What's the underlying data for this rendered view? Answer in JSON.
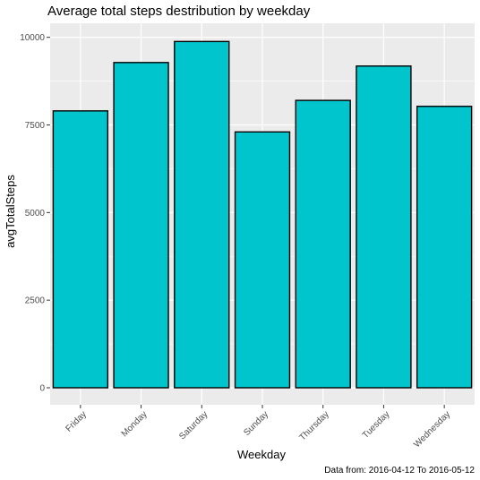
{
  "chart_data": {
    "type": "bar",
    "title": "Average total steps destribution by weekday",
    "xlabel": "Weekday",
    "ylabel": "avgTotalSteps",
    "caption": "Data from: 2016-04-12 To 2016-05-12",
    "categories": [
      "Friday",
      "Monday",
      "Saturday",
      "Sunday",
      "Thursday",
      "Tuesday",
      "Wednesday"
    ],
    "values": [
      7900,
      9280,
      9880,
      7300,
      8200,
      9180,
      8030
    ],
    "ylim": [
      0,
      10400
    ],
    "yticks": [
      0,
      2500,
      5000,
      7500,
      10000
    ],
    "ytick_labels": [
      "0",
      "2500",
      "5000",
      "7500",
      "10000"
    ],
    "bar_color": "#00C5CD",
    "bar_outline": "#000000",
    "panel_background": "#EBEBEB",
    "grid_color": "#FFFFFF",
    "grid": true,
    "x_tick_rotation": "45deg"
  }
}
